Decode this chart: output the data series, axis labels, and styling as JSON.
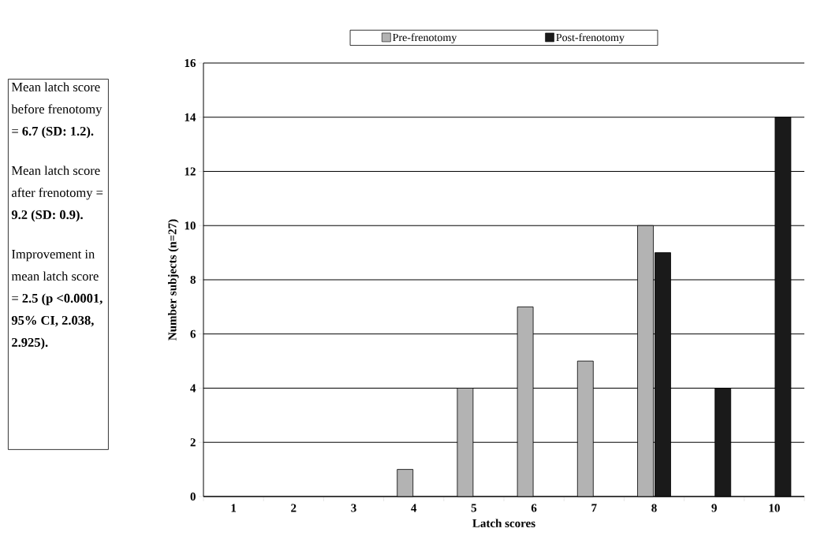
{
  "chart_data": {
    "type": "bar",
    "xlabel": "Latch scores",
    "ylabel": "Number subjects (n=27)",
    "categories": [
      "1",
      "2",
      "3",
      "4",
      "5",
      "6",
      "7",
      "8",
      "9",
      "10"
    ],
    "series": [
      {
        "name": "Pre-frenotomy",
        "color": "#b3b3b3",
        "values": [
          0,
          0,
          0,
          1,
          4,
          7,
          5,
          10,
          0,
          0
        ]
      },
      {
        "name": "Post-frenotomy",
        "color": "#1a1a1a",
        "values": [
          0,
          0,
          0,
          0,
          0,
          0,
          0,
          9,
          4,
          14
        ]
      }
    ],
    "ylim": [
      0,
      16
    ],
    "yticks": [
      0,
      2,
      4,
      6,
      8,
      10,
      12,
      14,
      16
    ],
    "grid": "y",
    "legend": "top",
    "annotations": [
      "Mean latch score before frenotomy = **6.7 (SD: 1.2).**",
      "Mean latch score after frenotomy = **9.2 (SD: 0.9).**",
      "Improvement in mean latch score = **2.5 (p <0.0001, 95% CI, 2.038, 2.925).**"
    ]
  }
}
